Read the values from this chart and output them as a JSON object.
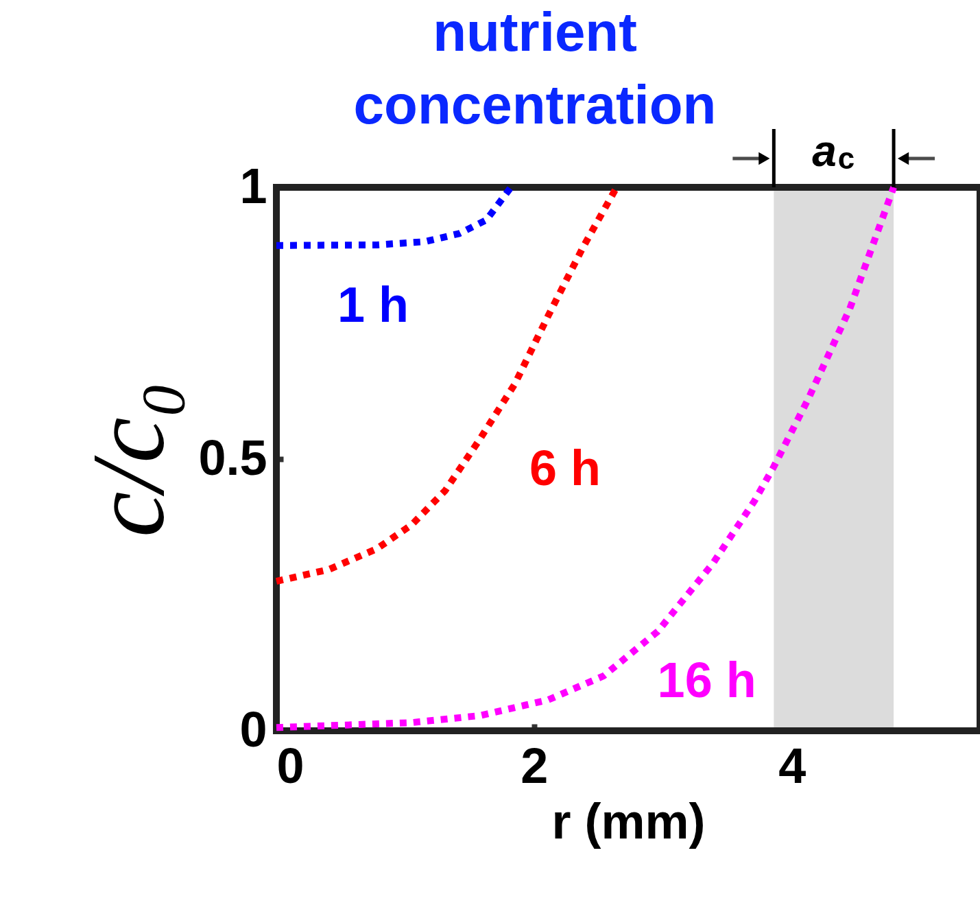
{
  "chart_data": {
    "type": "line",
    "title": [
      "nutrient",
      "concentration"
    ],
    "xlabel": "r (mm)",
    "ylabel": "c/c₀",
    "xlim": [
      0,
      5.46
    ],
    "ylim": [
      0,
      1
    ],
    "xticks": [
      0,
      2,
      4
    ],
    "yticks": [
      0,
      0.5,
      1
    ],
    "grid": false,
    "line_style": "dotted",
    "marker": "none",
    "series": [
      {
        "name": "1 h",
        "color": "#0000ff",
        "x": [
          0,
          0.78,
          1.15,
          1.42,
          1.63,
          1.82
        ],
        "values": [
          0.893,
          0.894,
          0.9,
          0.915,
          0.94,
          1.0
        ]
      },
      {
        "name": "6 h",
        "color": "#ff0000",
        "x": [
          0,
          0.41,
          0.78,
          1.05,
          1.31,
          1.58,
          1.85,
          2.11,
          2.38,
          2.64
        ],
        "values": [
          0.275,
          0.297,
          0.335,
          0.379,
          0.442,
          0.537,
          0.638,
          0.764,
          0.89,
          1.0
        ]
      },
      {
        "name": "16 h",
        "color": "#ff00ff",
        "x": [
          0,
          1.05,
          1.58,
          2.11,
          2.54,
          2.96,
          3.39,
          3.71,
          3.86,
          4.13,
          4.45,
          4.79
        ],
        "values": [
          0.006,
          0.015,
          0.028,
          0.057,
          0.101,
          0.183,
          0.309,
          0.423,
          0.486,
          0.612,
          0.777,
          1.0
        ]
      }
    ],
    "bands": [
      {
        "axis": "x",
        "from": 3.86,
        "to": 4.79,
        "label": "a$_{c}$",
        "color": "#dcdcdc"
      }
    ]
  }
}
